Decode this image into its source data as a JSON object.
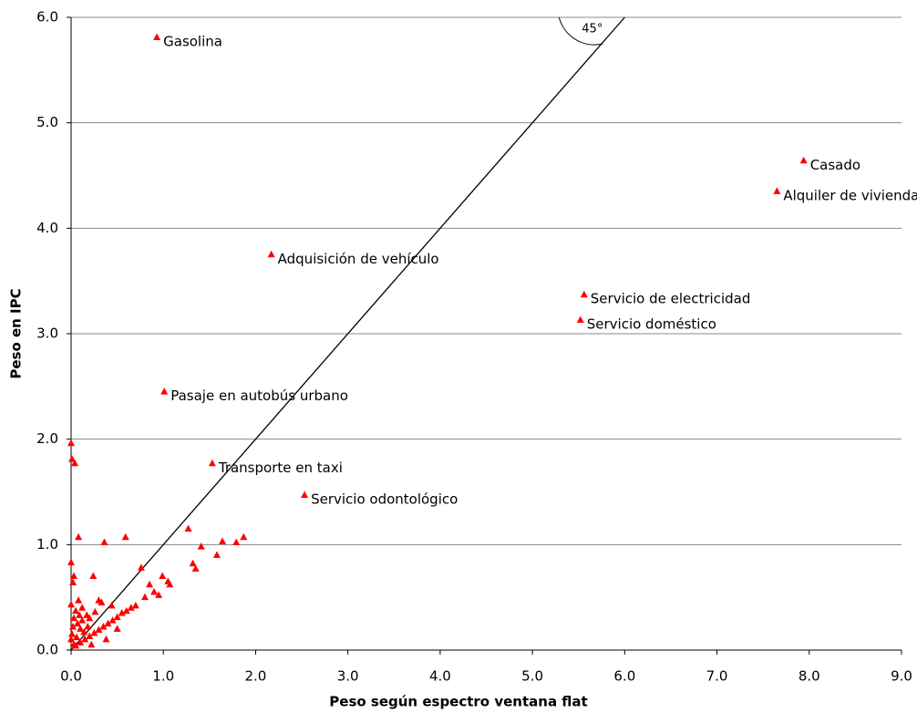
{
  "chart_data": {
    "type": "scatter",
    "x_label": "Peso según espectro ventana flat",
    "y_label": "Peso en IPC",
    "color": "#ff0000",
    "grid": true,
    "xlim": [
      0,
      9
    ],
    "ylim": [
      0,
      6
    ],
    "xticks": [
      {
        "value": 0,
        "label": "0.0"
      },
      {
        "value": 1,
        "label": "1.0"
      },
      {
        "value": 2,
        "label": "2.0"
      },
      {
        "value": 3,
        "label": "3.0"
      },
      {
        "value": 4,
        "label": "4.0"
      },
      {
        "value": 5,
        "label": "5.0"
      },
      {
        "value": 6,
        "label": "6.0"
      },
      {
        "value": 7,
        "label": "7.0"
      },
      {
        "value": 8,
        "label": "8.0"
      },
      {
        "value": 9,
        "label": "9.0"
      }
    ],
    "yticks": [
      {
        "value": 0,
        "label": "0.0"
      },
      {
        "value": 1,
        "label": "1.0"
      },
      {
        "value": 2,
        "label": "2.0"
      },
      {
        "value": 3,
        "label": "3.0"
      },
      {
        "value": 4,
        "label": "4.0"
      },
      {
        "value": 5,
        "label": "5.0"
      },
      {
        "value": 6,
        "label": "6.0"
      }
    ],
    "reference_line": {
      "label": "45°",
      "x": [
        0,
        6
      ],
      "y": [
        0,
        6
      ]
    },
    "x": [
      0.93,
      7.94,
      7.65,
      2.17,
      5.56,
      5.52,
      1.01,
      1.53,
      2.53,
      0,
      0.01,
      0.04,
      0.08,
      0.36,
      0.59,
      1.27,
      1.32,
      1.35,
      1.41,
      1.58,
      1.64,
      1.79,
      1.87,
      0.76,
      0.24,
      0,
      0.03,
      0.02,
      0,
      0.85,
      0.9,
      0.95,
      0.99,
      1.05,
      1.07,
      0.8,
      0.7,
      0.65,
      0.6,
      0.55,
      0.5,
      0.45,
      0.4,
      0.35,
      0.3,
      0.25,
      0.2,
      0.15,
      0.1,
      0.05,
      0.44,
      0.33,
      0.3,
      0.12,
      0.17,
      0.08,
      0.05,
      0.03,
      0.02,
      0.01,
      0,
      0.07,
      0.1,
      0.14,
      0.2,
      0.26,
      0.22,
      0.38,
      0.5,
      0.03,
      0.06,
      0.12,
      0.18,
      0.09
    ],
    "values": [
      5.81,
      4.64,
      4.35,
      3.75,
      3.37,
      3.13,
      2.45,
      1.77,
      1.47,
      1.96,
      1.81,
      1.77,
      1.07,
      1.02,
      1.07,
      1.15,
      0.82,
      0.77,
      0.98,
      0.9,
      1.03,
      1.02,
      1.07,
      0.78,
      0.7,
      0.83,
      0.7,
      0.64,
      0.43,
      0.62,
      0.55,
      0.52,
      0.7,
      0.65,
      0.62,
      0.5,
      0.42,
      0.4,
      0.37,
      0.35,
      0.31,
      0.28,
      0.25,
      0.22,
      0.19,
      0.16,
      0.13,
      0.1,
      0.07,
      0.04,
      0.42,
      0.45,
      0.47,
      0.4,
      0.33,
      0.47,
      0.37,
      0.3,
      0.22,
      0.15,
      0.1,
      0.25,
      0.2,
      0.17,
      0.3,
      0.36,
      0.05,
      0.1,
      0.2,
      0.05,
      0.12,
      0.28,
      0.22,
      0.33
    ],
    "labels": [
      "Gasolina",
      "Casado",
      "Alquiler de vivienda",
      "Adquisición de vehículo",
      "Servicio de electricidad",
      "Servicio doméstico",
      "Pasaje en autobús urbano",
      "Transporte en taxi",
      "Servicio odontológico",
      null,
      null,
      null,
      null,
      null,
      null,
      null,
      null,
      null,
      null,
      null,
      null,
      null,
      null,
      null,
      null,
      null,
      null,
      null,
      null,
      null,
      null,
      null,
      null,
      null,
      null,
      null,
      null,
      null,
      null,
      null,
      null,
      null,
      null,
      null,
      null,
      null,
      null,
      null,
      null,
      null,
      null,
      null,
      null,
      null,
      null,
      null,
      null,
      null,
      null,
      null,
      null,
      null,
      null,
      null,
      null,
      null,
      null,
      null,
      null,
      null,
      null,
      null,
      null,
      null,
      null
    ]
  }
}
